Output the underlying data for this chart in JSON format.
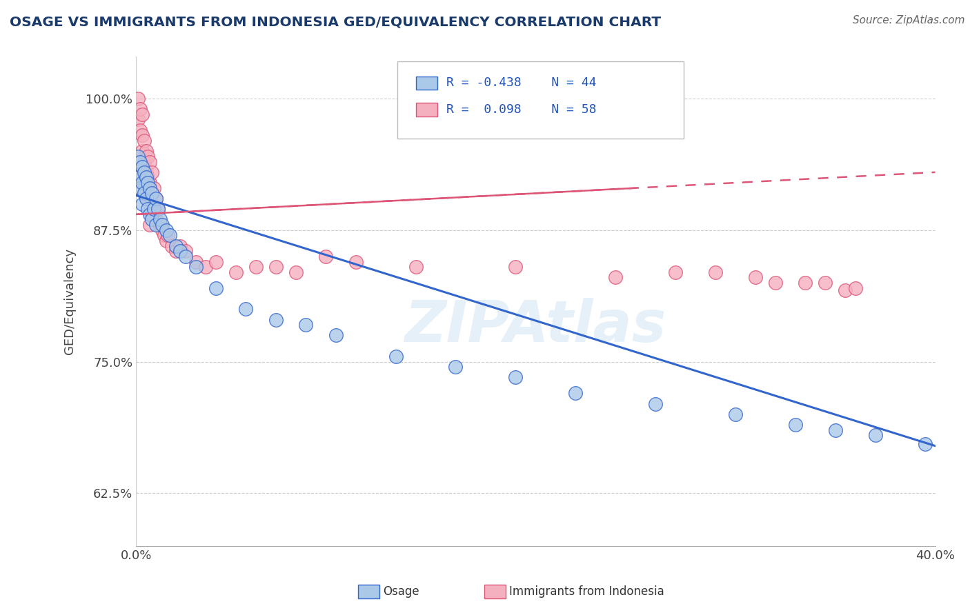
{
  "title": "OSAGE VS IMMIGRANTS FROM INDONESIA GED/EQUIVALENCY CORRELATION CHART",
  "source": "Source: ZipAtlas.com",
  "ylabel": "GED/Equivalency",
  "xlim": [
    0.0,
    0.4
  ],
  "ylim": [
    0.575,
    1.04
  ],
  "yticks": [
    0.625,
    0.75,
    0.875,
    1.0
  ],
  "ytick_labels": [
    "62.5%",
    "75.0%",
    "87.5%",
    "100.0%"
  ],
  "xticks": [
    0.0,
    0.4
  ],
  "xtick_labels": [
    "0.0%",
    "40.0%"
  ],
  "color_osage": "#aac8e8",
  "color_indo": "#f5b0c0",
  "trendline_osage": "#3366cc",
  "trendline_indo": "#dd5577",
  "background": "#ffffff",
  "osage_x": [
    0.001,
    0.001,
    0.002,
    0.002,
    0.003,
    0.003,
    0.003,
    0.004,
    0.004,
    0.005,
    0.005,
    0.006,
    0.006,
    0.007,
    0.007,
    0.008,
    0.008,
    0.009,
    0.01,
    0.01,
    0.011,
    0.012,
    0.013,
    0.015,
    0.017,
    0.02,
    0.022,
    0.025,
    0.03,
    0.04,
    0.055,
    0.07,
    0.085,
    0.1,
    0.13,
    0.16,
    0.19,
    0.22,
    0.26,
    0.3,
    0.33,
    0.35,
    0.37,
    0.395
  ],
  "osage_y": [
    0.945,
    0.925,
    0.94,
    0.915,
    0.935,
    0.92,
    0.9,
    0.93,
    0.91,
    0.925,
    0.905,
    0.92,
    0.895,
    0.915,
    0.89,
    0.91,
    0.885,
    0.895,
    0.905,
    0.88,
    0.895,
    0.885,
    0.88,
    0.875,
    0.87,
    0.86,
    0.855,
    0.85,
    0.84,
    0.82,
    0.8,
    0.79,
    0.785,
    0.775,
    0.755,
    0.745,
    0.735,
    0.72,
    0.71,
    0.7,
    0.69,
    0.685,
    0.68,
    0.672
  ],
  "indo_x": [
    0.001,
    0.001,
    0.002,
    0.002,
    0.003,
    0.003,
    0.003,
    0.003,
    0.004,
    0.004,
    0.004,
    0.005,
    0.005,
    0.005,
    0.006,
    0.006,
    0.006,
    0.007,
    0.007,
    0.007,
    0.007,
    0.008,
    0.008,
    0.008,
    0.009,
    0.009,
    0.01,
    0.01,
    0.011,
    0.012,
    0.013,
    0.014,
    0.015,
    0.016,
    0.018,
    0.02,
    0.022,
    0.025,
    0.03,
    0.035,
    0.04,
    0.05,
    0.06,
    0.07,
    0.08,
    0.095,
    0.11,
    0.14,
    0.19,
    0.24,
    0.27,
    0.29,
    0.31,
    0.32,
    0.335,
    0.345,
    0.355,
    0.36
  ],
  "indo_y": [
    1.0,
    0.98,
    0.99,
    0.97,
    0.985,
    0.965,
    0.95,
    0.935,
    0.96,
    0.94,
    0.92,
    0.95,
    0.93,
    0.91,
    0.945,
    0.925,
    0.905,
    0.94,
    0.92,
    0.9,
    0.88,
    0.93,
    0.91,
    0.89,
    0.915,
    0.895,
    0.905,
    0.885,
    0.895,
    0.88,
    0.875,
    0.87,
    0.865,
    0.87,
    0.86,
    0.855,
    0.86,
    0.855,
    0.845,
    0.84,
    0.845,
    0.835,
    0.84,
    0.84,
    0.835,
    0.85,
    0.845,
    0.84,
    0.84,
    0.83,
    0.835,
    0.835,
    0.83,
    0.825,
    0.825,
    0.825,
    0.818,
    0.82
  ],
  "osage_trendline_x0": 0.0,
  "osage_trendline_y0": 0.908,
  "osage_trendline_x1": 0.4,
  "osage_trendline_y1": 0.67,
  "indo_trendline_x0": 0.0,
  "indo_trendline_y0": 0.89,
  "indo_trendline_x1": 0.4,
  "indo_trendline_y1": 0.93
}
